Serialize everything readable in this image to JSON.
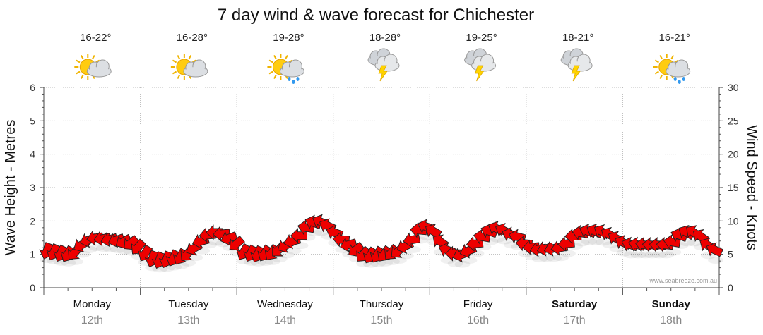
{
  "chart_data": {
    "type": "line",
    "title": "7 day wind & wave forecast for Chichester",
    "ylabel_left": "Wave Height - Metres",
    "ylabel_right": "Wind Speed - Knots",
    "y_left_range": [
      0,
      6
    ],
    "y_left_ticks": [
      "0",
      "1",
      "2",
      "3",
      "4",
      "5",
      "6"
    ],
    "y_right_range": [
      0,
      30
    ],
    "y_right_ticks": [
      "0",
      "5",
      "10",
      "15",
      "20",
      "25",
      "30"
    ],
    "grid": true,
    "credit": "www.seabreeze.com.au",
    "days": [
      {
        "day": "Monday",
        "date": "12th",
        "temp": "16-22°",
        "weather": "sun-cloud-icon",
        "bold": false
      },
      {
        "day": "Tuesday",
        "date": "13th",
        "temp": "16-28°",
        "weather": "sun-cloud-icon",
        "bold": false
      },
      {
        "day": "Wednesday",
        "date": "14th",
        "temp": "19-28°",
        "weather": "sun-cloud-rain-icon",
        "bold": false
      },
      {
        "day": "Thursday",
        "date": "15th",
        "temp": "18-28°",
        "weather": "storm-icon",
        "bold": false
      },
      {
        "day": "Friday",
        "date": "16th",
        "temp": "19-25°",
        "weather": "storm-icon",
        "bold": false
      },
      {
        "day": "Saturday",
        "date": "17th",
        "temp": "18-21°",
        "weather": "storm-icon",
        "bold": true
      },
      {
        "day": "Sunday",
        "date": "18th",
        "temp": "16-21°",
        "weather": "sun-cloud-rain-icon",
        "bold": true
      }
    ],
    "series": [
      {
        "name": "",
        "unit": "knots",
        "color": "#ee0000",
        "values": [
          5.7,
          5.5,
          5.3,
          5.2,
          5.4,
          6.5,
          7.2,
          7.5,
          7.4,
          7.3,
          7.2,
          7.0,
          6.8,
          6.2,
          5.3,
          4.5,
          4.3,
          4.4,
          4.6,
          4.8,
          5.2,
          6.0,
          7.0,
          7.9,
          8.3,
          8.1,
          7.5,
          6.7,
          5.5,
          5.3,
          5.2,
          5.3,
          5.4,
          5.8,
          6.4,
          7.0,
          7.8,
          9.0,
          9.7,
          9.8,
          9.2,
          8.2,
          7.2,
          6.5,
          5.8,
          5.1,
          5.0,
          5.1,
          5.2,
          5.4,
          5.6,
          6.3,
          7.2,
          8.6,
          9.1,
          8.4,
          6.8,
          5.6,
          5.1,
          5.0,
          5.6,
          6.6,
          7.6,
          8.4,
          8.8,
          8.5,
          7.9,
          7.6,
          6.6,
          6.1,
          5.8,
          5.9,
          5.9,
          6.0,
          6.6,
          7.7,
          8.2,
          8.4,
          8.4,
          8.3,
          7.9,
          7.3,
          6.7,
          6.4,
          6.4,
          6.4,
          6.4,
          6.4,
          6.4,
          6.8,
          7.8,
          8.2,
          8.2,
          7.6,
          6.3,
          5.6
        ],
        "directions_deg": [
          110,
          115,
          115,
          120,
          130,
          150,
          160,
          170,
          170,
          165,
          160,
          150,
          140,
          130,
          120,
          110,
          110,
          110,
          115,
          120,
          130,
          150,
          165,
          175,
          180,
          175,
          160,
          140,
          120,
          115,
          115,
          120,
          125,
          135,
          150,
          165,
          180,
          190,
          200,
          205,
          205,
          200,
          185,
          165,
          145,
          130,
          120,
          120,
          125,
          130,
          140,
          155,
          170,
          185,
          200,
          210,
          215,
          200,
          180,
          160,
          160,
          175,
          190,
          200,
          205,
          205,
          200,
          195,
          185,
          175,
          170,
          165,
          165,
          170,
          175,
          180,
          190,
          200,
          205,
          210,
          210,
          210,
          205,
          200,
          195,
          190,
          185,
          185,
          185,
          190,
          200,
          210,
          215,
          215,
          210,
          205
        ]
      }
    ]
  }
}
